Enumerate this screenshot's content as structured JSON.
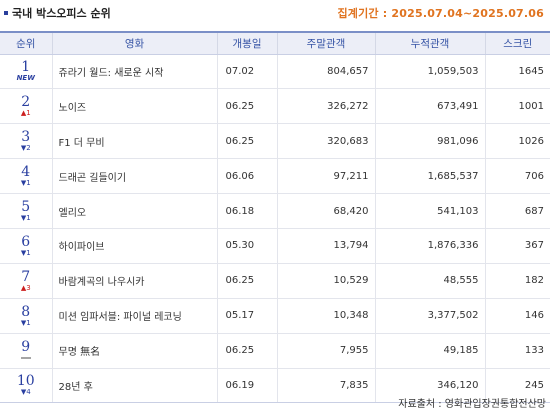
{
  "header": {
    "title": "국내 박스오피스 순위",
    "period": "집계기간 : 2025.07.04~2025.07.06"
  },
  "table": {
    "columns": [
      "순위",
      "영화",
      "개봉일",
      "주말관객",
      "누적관객",
      "스크린"
    ],
    "rows": [
      {
        "rank": "1",
        "change": "NEW",
        "change_dir": "new",
        "title": "쥬라기 월드: 새로운 시작",
        "release": "07.02",
        "weekend": "804,657",
        "total": "1,059,503",
        "screens": "1645"
      },
      {
        "rank": "2",
        "change": "1",
        "change_dir": "up",
        "title": "노이즈",
        "release": "06.25",
        "weekend": "326,272",
        "total": "673,491",
        "screens": "1001"
      },
      {
        "rank": "3",
        "change": "2",
        "change_dir": "down",
        "title": "F1 더 무비",
        "release": "06.25",
        "weekend": "320,683",
        "total": "981,096",
        "screens": "1026"
      },
      {
        "rank": "4",
        "change": "1",
        "change_dir": "down",
        "title": "드래곤 길들이기",
        "release": "06.06",
        "weekend": "97,211",
        "total": "1,685,537",
        "screens": "706"
      },
      {
        "rank": "5",
        "change": "1",
        "change_dir": "down",
        "title": "엘리오",
        "release": "06.18",
        "weekend": "68,420",
        "total": "541,103",
        "screens": "687"
      },
      {
        "rank": "6",
        "change": "1",
        "change_dir": "down",
        "title": "하이파이브",
        "release": "05.30",
        "weekend": "13,794",
        "total": "1,876,336",
        "screens": "367"
      },
      {
        "rank": "7",
        "change": "3",
        "change_dir": "up",
        "title": "바람계곡의 나우시카",
        "release": "06.25",
        "weekend": "10,529",
        "total": "48,555",
        "screens": "182"
      },
      {
        "rank": "8",
        "change": "1",
        "change_dir": "down",
        "title": "미션 임파서블: 파이널 레코닝",
        "release": "05.17",
        "weekend": "10,348",
        "total": "3,377,502",
        "screens": "146"
      },
      {
        "rank": "9",
        "change": "",
        "change_dir": "same",
        "title": "무명 無名",
        "release": "06.25",
        "weekend": "7,955",
        "total": "49,185",
        "screens": "133"
      },
      {
        "rank": "10",
        "change": "4",
        "change_dir": "down",
        "title": "28년 후",
        "release": "06.19",
        "weekend": "7,835",
        "total": "346,120",
        "screens": "245"
      }
    ]
  },
  "footer": {
    "source": "자료출처 : 영화관입장권통합전산망"
  },
  "colors": {
    "rank": "#2a3fa0",
    "up": "#cc1f1f",
    "down": "#2a3fa0",
    "period": "#e0731f",
    "header_bg": "#eceef7"
  }
}
